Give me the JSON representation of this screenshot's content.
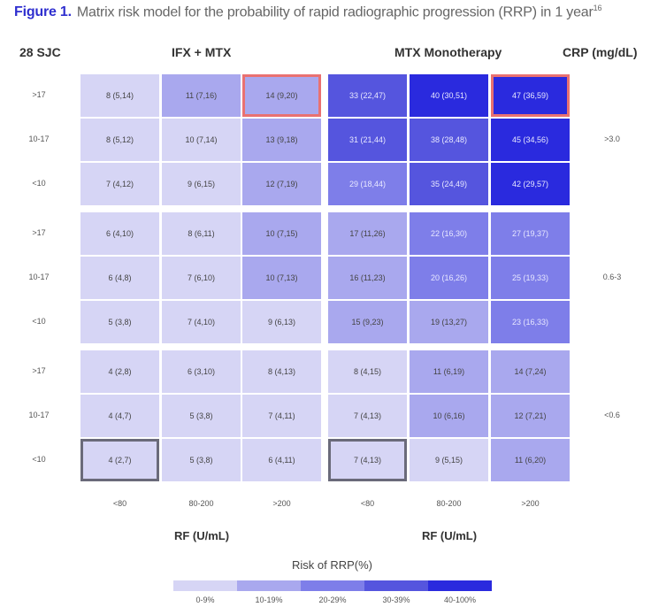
{
  "caption": {
    "figure_label": "Figure 1.",
    "text": "Matrix risk model for the probability of rapid radiographic progression (RRP) in 1 year",
    "superscript": "16"
  },
  "headers": {
    "sjc": "28 SJC",
    "ifx": "IFX + MTX",
    "mtx": "MTX Monotherapy",
    "crp": "CRP (mg/dL)"
  },
  "sjc_rows": [
    ">17",
    "10-17",
    "<10",
    ">17",
    "10-17",
    "<10",
    ">17",
    "10-17",
    "<10"
  ],
  "crp_bands": [
    ">3.0",
    "0.6-3",
    "<0.6"
  ],
  "rf_ticks": [
    "<80",
    "80-200",
    ">200",
    "<80",
    "80-200",
    ">200"
  ],
  "rf_title": "RF (U/mL)",
  "rf_title_2": "RF (U/mL)",
  "legend": {
    "title": "Risk of RRP(%)",
    "items": [
      {
        "label": "0-9%",
        "color": "#d6d5f5"
      },
      {
        "label": "10-19%",
        "color": "#a9a8ee"
      },
      {
        "label": "20-29%",
        "color": "#7e7ee9"
      },
      {
        "label": "30-39%",
        "color": "#5555de"
      },
      {
        "label": "40-100%",
        "color": "#2a2ade"
      }
    ]
  },
  "colors": {
    "highlight_red": "#e97171",
    "highlight_grey": "#6a6a7a",
    "figure_label": "#2f2fcf"
  },
  "chart_data": {
    "type": "heatmap",
    "title": "Matrix risk model for the probability of rapid radiographic progression (RRP) in 1 year",
    "xlabel": "RF (U/mL)",
    "ylabel": "28 SJC",
    "secondary_ylabel": "CRP (mg/dL)",
    "panels": [
      "IFX + MTX",
      "MTX Monotherapy"
    ],
    "x_categories": [
      "<80",
      "80-200",
      ">200"
    ],
    "y_categories": [
      ">17",
      "10-17",
      "<10"
    ],
    "crp_bands": [
      ">3.0",
      "0.6-3",
      "<0.6"
    ],
    "legend": [
      "0-9%",
      "10-19%",
      "20-29%",
      "30-39%",
      "40-100%"
    ],
    "cells": {
      "IFX + MTX": [
        [
          "8 (5,14)",
          "11 (7,16)",
          "14 (9,20)"
        ],
        [
          "8 (5,12)",
          "10 (7,14)",
          "13 (9,18)"
        ],
        [
          "7 (4,12)",
          "9 (6,15)",
          "12 (7,19)"
        ],
        [
          "6 (4,10)",
          "8 (6,11)",
          "10 (7,15)"
        ],
        [
          "6 (4,8)",
          "7 (6,10)",
          "10 (7,13)"
        ],
        [
          "5 (3,8)",
          "7 (4,10)",
          "9 (6,13)"
        ],
        [
          "4 (2,8)",
          "6 (3,10)",
          "8 (4,13)"
        ],
        [
          "4 (4,7)",
          "5 (3,8)",
          "7 (4,11)"
        ],
        [
          "4 (2,7)",
          "5 (3,8)",
          "6 (4,11)"
        ]
      ],
      "MTX Monotherapy": [
        [
          "33 (22,47)",
          "40 (30,51)",
          "47 (36,59)"
        ],
        [
          "31 (21,44)",
          "38 (28,48)",
          "45 (34,56)"
        ],
        [
          "29 (18,44)",
          "35 (24,49)",
          "42 (29,57)"
        ],
        [
          "17 (11,26)",
          "22 (16,30)",
          "27 (19,37)"
        ],
        [
          "16 (11,23)",
          "20 (16,26)",
          "25 (19,33)"
        ],
        [
          "15 (9,23)",
          "19 (13,27)",
          "23 (16,33)"
        ],
        [
          "8 (4,15)",
          "11 (6,19)",
          "14 (7,24)"
        ],
        [
          "7 (4,13)",
          "10 (6,16)",
          "12 (7,21)"
        ],
        [
          "7 (4,13)",
          "9 (5,15)",
          "11 (6,20)"
        ]
      ]
    },
    "values": {
      "IFX + MTX": [
        [
          8,
          11,
          14
        ],
        [
          8,
          10,
          13
        ],
        [
          7,
          9,
          12
        ],
        [
          6,
          8,
          10
        ],
        [
          6,
          7,
          10
        ],
        [
          5,
          7,
          9
        ],
        [
          4,
          6,
          8
        ],
        [
          4,
          5,
          7
        ],
        [
          4,
          5,
          6
        ]
      ],
      "MTX Monotherapy": [
        [
          33,
          40,
          47
        ],
        [
          31,
          38,
          45
        ],
        [
          29,
          35,
          42
        ],
        [
          17,
          22,
          27
        ],
        [
          16,
          20,
          25
        ],
        [
          15,
          19,
          23
        ],
        [
          8,
          11,
          14
        ],
        [
          7,
          10,
          12
        ],
        [
          7,
          9,
          11
        ]
      ]
    },
    "color_levels": {
      "IFX + MTX": [
        [
          0,
          1,
          1
        ],
        [
          0,
          0,
          1
        ],
        [
          0,
          0,
          1
        ],
        [
          0,
          0,
          1
        ],
        [
          0,
          0,
          1
        ],
        [
          0,
          0,
          0
        ],
        [
          0,
          0,
          0
        ],
        [
          0,
          0,
          0
        ],
        [
          0,
          0,
          0
        ]
      ],
      "MTX Monotherapy": [
        [
          3,
          4,
          4
        ],
        [
          3,
          3,
          4
        ],
        [
          2,
          3,
          4
        ],
        [
          1,
          2,
          2
        ],
        [
          1,
          2,
          2
        ],
        [
          1,
          1,
          2
        ],
        [
          0,
          1,
          1
        ],
        [
          0,
          1,
          1
        ],
        [
          0,
          0,
          1
        ]
      ]
    },
    "highlighted_cells": {
      "red": [
        [
          "IFX + MTX",
          0,
          2
        ],
        [
          "MTX Monotherapy",
          0,
          2
        ]
      ],
      "grey": [
        [
          "IFX + MTX",
          8,
          0
        ],
        [
          "MTX Monotherapy",
          8,
          0
        ]
      ]
    }
  }
}
